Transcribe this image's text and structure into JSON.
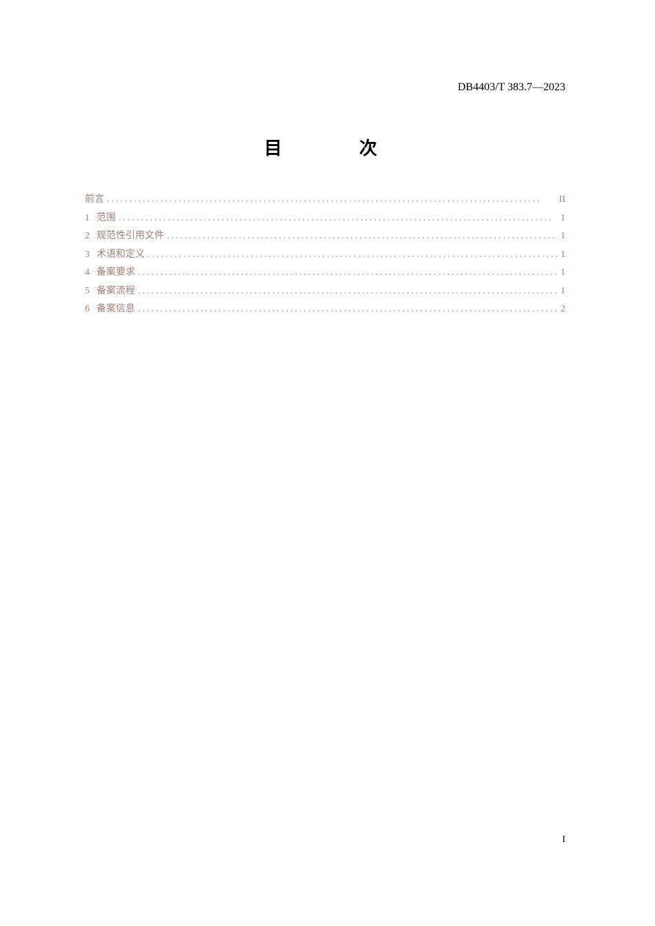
{
  "header": {
    "document_code": "DB4403/T 383.7—2023"
  },
  "title": "目　　次",
  "toc": {
    "entries": [
      {
        "num": "",
        "label": "前言",
        "page": "II"
      },
      {
        "num": "1",
        "label": "范围",
        "page": "1"
      },
      {
        "num": "2",
        "label": "规范性引用文件",
        "page": "1"
      },
      {
        "num": "3",
        "label": "术语和定义",
        "page": "1"
      },
      {
        "num": "4",
        "label": "备案要求",
        "page": "1"
      },
      {
        "num": "5",
        "label": "备案流程",
        "page": "1"
      },
      {
        "num": "6",
        "label": "备案信息",
        "page": "2"
      }
    ]
  },
  "footer": {
    "page_number": "I"
  },
  "colors": {
    "background": "#ffffff",
    "text_black": "#000000",
    "toc_link": "#a68176"
  }
}
